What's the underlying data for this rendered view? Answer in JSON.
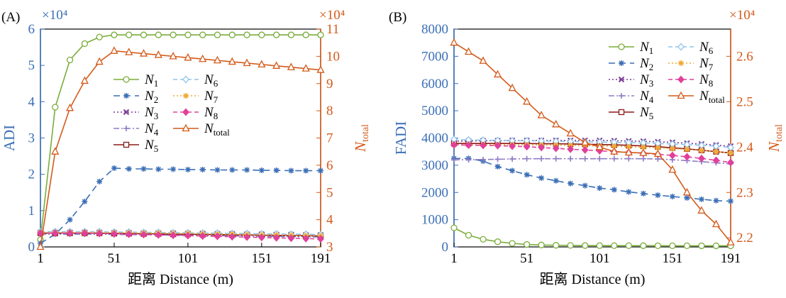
{
  "palette": {
    "axis_blue": "#3b6fb6",
    "axis_orange": "#d45a1a",
    "N1": "#7aad3a",
    "N2": "#3b6fb6",
    "N3": "#7d3c98",
    "N4": "#8e7cc3",
    "N5": "#8b1a1a",
    "N6": "#8ec5ea",
    "N7": "#f0a830",
    "N8": "#e0409a",
    "Ntotal": "#d45a1a"
  },
  "chart_data": [
    {
      "type": "line",
      "panel_label": "(A)",
      "xlabel": "距离 Distance (m)",
      "ylabel": "ADI",
      "y2label": "N",
      "y2label_sub": "total",
      "y_multiplier": "×10⁴",
      "y2_multiplier": "×10⁴",
      "x": [
        1,
        11,
        21,
        31,
        41,
        51,
        61,
        71,
        81,
        91,
        101,
        111,
        121,
        131,
        141,
        151,
        161,
        171,
        181,
        191
      ],
      "xlim": [
        1,
        191
      ],
      "ylim": [
        0,
        6
      ],
      "y2lim": [
        3,
        11
      ],
      "xticks": [
        "1",
        "51",
        "101",
        "151",
        "191"
      ],
      "yticks": [
        "0",
        "1",
        "2",
        "3",
        "4",
        "5",
        "6"
      ],
      "y2ticks": [
        "3",
        "4",
        "5",
        "6",
        "7",
        "8",
        "9",
        "10",
        "11"
      ],
      "legend_position": "center",
      "legend_columns": [
        [
          "N1",
          "N2",
          "N3",
          "N4",
          "N5"
        ],
        [
          "N6",
          "N7",
          "N8",
          "Ntotal"
        ]
      ],
      "series": [
        {
          "name": "N1",
          "sub": "1",
          "axis": "left",
          "values": [
            0.2,
            3.85,
            5.15,
            5.6,
            5.78,
            5.84,
            5.84,
            5.84,
            5.84,
            5.84,
            5.84,
            5.84,
            5.84,
            5.84,
            5.84,
            5.84,
            5.84,
            5.84,
            5.84,
            5.84
          ]
        },
        {
          "name": "N2",
          "sub": "2",
          "axis": "left",
          "values": [
            0.1,
            0.35,
            0.75,
            1.25,
            1.8,
            2.17,
            2.15,
            2.15,
            2.14,
            2.14,
            2.13,
            2.13,
            2.12,
            2.12,
            2.12,
            2.11,
            2.11,
            2.1,
            2.1,
            2.1
          ]
        },
        {
          "name": "N3",
          "sub": "3",
          "axis": "left",
          "values": [
            0.4,
            0.4,
            0.4,
            0.4,
            0.4,
            0.39,
            0.39,
            0.38,
            0.38,
            0.38,
            0.37,
            0.37,
            0.36,
            0.36,
            0.35,
            0.35,
            0.34,
            0.34,
            0.33,
            0.33
          ]
        },
        {
          "name": "N4",
          "sub": "4",
          "axis": "left",
          "values": [
            0.35,
            0.35,
            0.35,
            0.35,
            0.35,
            0.34,
            0.34,
            0.33,
            0.33,
            0.32,
            0.32,
            0.31,
            0.31,
            0.3,
            0.3,
            0.29,
            0.29,
            0.28,
            0.28,
            0.27
          ]
        },
        {
          "name": "N5",
          "sub": "5",
          "axis": "left",
          "values": [
            0.38,
            0.38,
            0.38,
            0.38,
            0.38,
            0.37,
            0.37,
            0.36,
            0.36,
            0.35,
            0.35,
            0.34,
            0.34,
            0.33,
            0.33,
            0.32,
            0.32,
            0.31,
            0.31,
            0.3
          ]
        },
        {
          "name": "N6",
          "sub": "6",
          "axis": "left",
          "values": [
            0.42,
            0.42,
            0.42,
            0.42,
            0.42,
            0.41,
            0.41,
            0.4,
            0.4,
            0.39,
            0.39,
            0.38,
            0.38,
            0.37,
            0.37,
            0.36,
            0.36,
            0.35,
            0.35,
            0.34
          ]
        },
        {
          "name": "N7",
          "sub": "7",
          "axis": "left",
          "values": [
            0.4,
            0.4,
            0.4,
            0.4,
            0.4,
            0.39,
            0.39,
            0.38,
            0.38,
            0.37,
            0.37,
            0.36,
            0.35,
            0.35,
            0.34,
            0.33,
            0.33,
            0.32,
            0.31,
            0.31
          ]
        },
        {
          "name": "N8",
          "sub": "8",
          "axis": "left",
          "values": [
            0.38,
            0.38,
            0.38,
            0.38,
            0.37,
            0.36,
            0.35,
            0.34,
            0.33,
            0.32,
            0.31,
            0.3,
            0.29,
            0.28,
            0.27,
            0.26,
            0.25,
            0.24,
            0.23,
            0.22
          ]
        },
        {
          "name": "Ntotal",
          "sub": "total",
          "axis": "right",
          "values": [
            3.0,
            6.5,
            8.1,
            9.1,
            9.8,
            10.2,
            10.15,
            10.1,
            10.05,
            10.0,
            9.95,
            9.9,
            9.85,
            9.8,
            9.75,
            9.7,
            9.65,
            9.6,
            9.55,
            9.5
          ]
        }
      ]
    },
    {
      "type": "line",
      "panel_label": "(B)",
      "xlabel": "距离 Distance (m)",
      "ylabel": "FADI",
      "y2label": "N",
      "y2label_sub": "total",
      "y2_multiplier": "×10⁴",
      "x": [
        1,
        11,
        21,
        31,
        41,
        51,
        61,
        71,
        81,
        91,
        101,
        111,
        121,
        131,
        141,
        151,
        161,
        171,
        181,
        191
      ],
      "xlim": [
        1,
        191
      ],
      "ylim": [
        0,
        8000
      ],
      "y2lim": [
        2.18,
        2.66
      ],
      "xticks": [
        "1",
        "51",
        "101",
        "151",
        "191"
      ],
      "yticks": [
        "0",
        "1000",
        "2000",
        "3000",
        "4000",
        "5000",
        "6000",
        "7000",
        "8000"
      ],
      "y2ticks": [
        "2.2",
        "2.3",
        "2.4",
        "2.5",
        "2.6"
      ],
      "legend_position": "top-right",
      "legend_columns": [
        [
          "N1",
          "N2",
          "N3",
          "N4",
          "N5"
        ],
        [
          "N6",
          "N7",
          "N8",
          "Ntotal"
        ]
      ],
      "series": [
        {
          "name": "N1",
          "sub": "1",
          "axis": "left",
          "values": [
            700,
            430,
            280,
            190,
            130,
            90,
            70,
            60,
            55,
            50,
            48,
            46,
            45,
            44,
            43,
            42,
            42,
            41,
            41,
            40
          ]
        },
        {
          "name": "N2",
          "sub": "2",
          "axis": "left",
          "values": [
            3250,
            3250,
            3150,
            2950,
            2800,
            2650,
            2530,
            2430,
            2330,
            2250,
            2160,
            2100,
            2020,
            1960,
            1900,
            1850,
            1800,
            1750,
            1700,
            1680
          ]
        },
        {
          "name": "N3",
          "sub": "3",
          "axis": "left",
          "values": [
            3880,
            3890,
            3900,
            3900,
            3910,
            3910,
            3910,
            3910,
            3910,
            3910,
            3910,
            3900,
            3890,
            3880,
            3860,
            3840,
            3810,
            3780,
            3740,
            3700
          ]
        },
        {
          "name": "N4",
          "sub": "4",
          "axis": "left",
          "values": [
            3200,
            3200,
            3210,
            3220,
            3230,
            3240,
            3240,
            3240,
            3240,
            3240,
            3240,
            3240,
            3240,
            3240,
            3230,
            3200,
            3170,
            3130,
            3090,
            3050
          ]
        },
        {
          "name": "N5",
          "sub": "5",
          "axis": "left",
          "values": [
            3800,
            3800,
            3800,
            3800,
            3800,
            3800,
            3790,
            3790,
            3780,
            3770,
            3760,
            3750,
            3730,
            3710,
            3680,
            3640,
            3600,
            3550,
            3500,
            3450
          ]
        },
        {
          "name": "N6",
          "sub": "6",
          "axis": "left",
          "values": [
            3950,
            3930,
            3920,
            3910,
            3900,
            3900,
            3890,
            3880,
            3870,
            3860,
            3850,
            3840,
            3830,
            3820,
            3800,
            3780,
            3760,
            3730,
            3700,
            3650
          ]
        },
        {
          "name": "N7",
          "sub": "7",
          "axis": "left",
          "values": [
            3750,
            3750,
            3750,
            3750,
            3750,
            3750,
            3740,
            3740,
            3730,
            3720,
            3710,
            3700,
            3680,
            3660,
            3640,
            3610,
            3580,
            3540,
            3500,
            3450
          ]
        },
        {
          "name": "N8",
          "sub": "8",
          "axis": "left",
          "values": [
            3750,
            3740,
            3730,
            3720,
            3700,
            3680,
            3650,
            3620,
            3590,
            3560,
            3530,
            3500,
            3470,
            3440,
            3400,
            3360,
            3310,
            3250,
            3180,
            3100
          ]
        },
        {
          "name": "Ntotal",
          "sub": "total",
          "axis": "right",
          "values": [
            2.63,
            2.61,
            2.59,
            2.56,
            2.53,
            2.5,
            2.47,
            2.45,
            2.43,
            2.41,
            2.4,
            2.39,
            2.388,
            2.387,
            2.385,
            2.35,
            2.3,
            2.26,
            2.23,
            2.19
          ]
        }
      ]
    }
  ]
}
